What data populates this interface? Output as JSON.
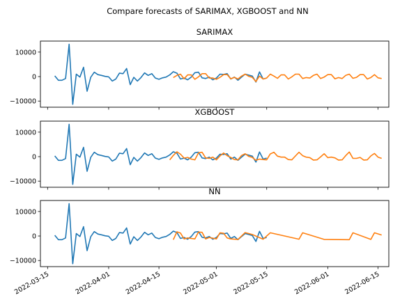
{
  "figure": {
    "title": "Compare forecasts of SARIMAX, XGBOOST and NN",
    "background": "#ffffff"
  },
  "colors": {
    "history": "#1f77b4",
    "forecast": "#ff7f0e",
    "axes": "#000000"
  },
  "chart_data": [
    {
      "type": "line",
      "title": "SARIMAX",
      "xlabel": "",
      "ylabel": "",
      "ylim": [
        -12500,
        14500
      ],
      "yticks": [
        -10000,
        0,
        10000
      ],
      "ytick_labels": [
        "−10000",
        "0",
        "10000"
      ],
      "xlim": [
        "2022-03-13",
        "2022-06-18"
      ],
      "series": [
        {
          "x": [
            "2022-03-17",
            "2022-03-18",
            "2022-03-19",
            "2022-03-20",
            "2022-03-21",
            "2022-03-22",
            "2022-03-23",
            "2022-03-24",
            "2022-03-25",
            "2022-03-26",
            "2022-03-27",
            "2022-03-28",
            "2022-03-29",
            "2022-03-30",
            "2022-03-31",
            "2022-04-01",
            "2022-04-02",
            "2022-04-03",
            "2022-04-04",
            "2022-04-05",
            "2022-04-06",
            "2022-04-07",
            "2022-04-08",
            "2022-04-09",
            "2022-04-10",
            "2022-04-11",
            "2022-04-12",
            "2022-04-13",
            "2022-04-14",
            "2022-04-15",
            "2022-04-16",
            "2022-04-17",
            "2022-04-18",
            "2022-04-19",
            "2022-04-20",
            "2022-04-21",
            "2022-04-22",
            "2022-04-23",
            "2022-04-24",
            "2022-04-25",
            "2022-04-26",
            "2022-04-27",
            "2022-04-28",
            "2022-04-29",
            "2022-04-30",
            "2022-05-01",
            "2022-05-02",
            "2022-05-03",
            "2022-05-04",
            "2022-05-05",
            "2022-05-06",
            "2022-05-07",
            "2022-05-08",
            "2022-05-09",
            "2022-05-10",
            "2022-05-11",
            "2022-05-12",
            "2022-05-13",
            "2022-05-14",
            "2022-05-15"
          ],
          "y": [
            300,
            -1500,
            -1500,
            -800,
            13200,
            -11300,
            1000,
            -200,
            3800,
            -6000,
            -300,
            1800,
            800,
            500,
            100,
            -100,
            -1800,
            -1000,
            1400,
            1200,
            3300,
            -3300,
            -300,
            -1800,
            -400,
            1500,
            500,
            1200,
            -600,
            -1100,
            -500,
            -200,
            700,
            2000,
            1400,
            -1000,
            -600,
            -1300,
            -200,
            1600,
            1800,
            -500,
            -800,
            -200,
            -1300,
            -600,
            1000,
            900,
            1200,
            -1000,
            -200,
            -1500,
            -200,
            1000,
            600,
            200,
            -2200,
            1900,
            -1000,
            -600
          ]
        },
        {
          "x": [
            "2022-04-19",
            "2022-04-20",
            "2022-04-21",
            "2022-04-22",
            "2022-04-23",
            "2022-04-24",
            "2022-04-25",
            "2022-04-26",
            "2022-04-27",
            "2022-04-28",
            "2022-04-29",
            "2022-04-30",
            "2022-05-01",
            "2022-05-02",
            "2022-05-03",
            "2022-05-04",
            "2022-05-05",
            "2022-05-06",
            "2022-05-07",
            "2022-05-08",
            "2022-05-09",
            "2022-05-10",
            "2022-05-11",
            "2022-05-12",
            "2022-05-13",
            "2022-05-14",
            "2022-05-15",
            "2022-05-16",
            "2022-05-17",
            "2022-05-18",
            "2022-05-19",
            "2022-05-20",
            "2022-05-21",
            "2022-05-22",
            "2022-05-23",
            "2022-05-24",
            "2022-05-25",
            "2022-05-26",
            "2022-05-27",
            "2022-05-28",
            "2022-05-29",
            "2022-05-30",
            "2022-05-31",
            "2022-06-01",
            "2022-06-02",
            "2022-06-03",
            "2022-06-04",
            "2022-06-05",
            "2022-06-06",
            "2022-06-07",
            "2022-06-08",
            "2022-06-09",
            "2022-06-10",
            "2022-06-11",
            "2022-06-12",
            "2022-06-13",
            "2022-06-14",
            "2022-06-15",
            "2022-06-16"
          ],
          "y": [
            -400,
            500,
            1000,
            -900,
            700,
            700,
            -1100,
            -100,
            1200,
            1200,
            -600,
            -600,
            -1100,
            -300,
            800,
            800,
            -900,
            -300,
            -1000,
            200,
            1000,
            100,
            -300,
            -2000,
            200,
            -1000,
            -600,
            1000,
            200,
            -700,
            700,
            700,
            -1000,
            -100,
            1000,
            1000,
            -800,
            -400,
            -600,
            500,
            1000,
            -800,
            -200,
            800,
            800,
            -900,
            -400,
            -800,
            500,
            1000,
            -700,
            -300,
            800,
            800,
            -1000,
            -400,
            800,
            -500,
            -800
          ]
        }
      ]
    },
    {
      "type": "line",
      "title": "XGBOOST",
      "xlabel": "",
      "ylabel": "",
      "ylim": [
        -12500,
        14500
      ],
      "yticks": [
        -10000,
        0,
        10000
      ],
      "ytick_labels": [
        "−10000",
        "0",
        "10000"
      ],
      "xlim": [
        "2022-03-13",
        "2022-06-18"
      ],
      "series": [
        {
          "x": [
            "2022-03-17",
            "2022-03-18",
            "2022-03-19",
            "2022-03-20",
            "2022-03-21",
            "2022-03-22",
            "2022-03-23",
            "2022-03-24",
            "2022-03-25",
            "2022-03-26",
            "2022-03-27",
            "2022-03-28",
            "2022-03-29",
            "2022-03-30",
            "2022-03-31",
            "2022-04-01",
            "2022-04-02",
            "2022-04-03",
            "2022-04-04",
            "2022-04-05",
            "2022-04-06",
            "2022-04-07",
            "2022-04-08",
            "2022-04-09",
            "2022-04-10",
            "2022-04-11",
            "2022-04-12",
            "2022-04-13",
            "2022-04-14",
            "2022-04-15",
            "2022-04-16",
            "2022-04-17",
            "2022-04-18",
            "2022-04-19",
            "2022-04-20",
            "2022-04-21",
            "2022-04-22",
            "2022-04-23",
            "2022-04-24",
            "2022-04-25",
            "2022-04-26",
            "2022-04-27",
            "2022-04-28",
            "2022-04-29",
            "2022-04-30",
            "2022-05-01",
            "2022-05-02",
            "2022-05-03",
            "2022-05-04",
            "2022-05-05",
            "2022-05-06",
            "2022-05-07",
            "2022-05-08",
            "2022-05-09",
            "2022-05-10",
            "2022-05-11",
            "2022-05-12",
            "2022-05-13",
            "2022-05-14",
            "2022-05-15"
          ],
          "y": [
            300,
            -1500,
            -1500,
            -800,
            13200,
            -11300,
            1000,
            -200,
            3800,
            -6000,
            -300,
            1800,
            800,
            500,
            100,
            -100,
            -1800,
            -1000,
            1400,
            1200,
            3300,
            -3300,
            -300,
            -1800,
            -400,
            1500,
            500,
            1200,
            -600,
            -1100,
            -500,
            -200,
            700,
            2000,
            1400,
            -1000,
            -600,
            -1300,
            -200,
            1600,
            1800,
            -500,
            -800,
            -200,
            -1300,
            -600,
            1000,
            900,
            1200,
            -1000,
            -200,
            -1500,
            -200,
            1000,
            600,
            200,
            -2200,
            1900,
            -1000,
            -600
          ]
        },
        {
          "x": [
            "2022-04-18",
            "2022-04-19",
            "2022-04-20",
            "2022-04-21",
            "2022-04-22",
            "2022-04-23",
            "2022-04-24",
            "2022-04-25",
            "2022-04-26",
            "2022-04-27",
            "2022-04-28",
            "2022-04-29",
            "2022-04-30",
            "2022-05-01",
            "2022-05-02",
            "2022-05-03",
            "2022-05-04",
            "2022-05-05",
            "2022-05-06",
            "2022-05-07",
            "2022-05-08",
            "2022-05-09",
            "2022-05-10",
            "2022-05-11",
            "2022-05-12",
            "2022-05-13",
            "2022-05-14",
            "2022-05-15",
            "2022-05-16",
            "2022-05-17",
            "2022-05-18",
            "2022-05-19",
            "2022-05-20",
            "2022-05-21",
            "2022-05-22",
            "2022-05-23",
            "2022-05-24",
            "2022-05-25",
            "2022-05-26",
            "2022-05-27",
            "2022-05-28",
            "2022-05-29",
            "2022-05-30",
            "2022-05-31",
            "2022-06-01",
            "2022-06-02",
            "2022-06-03",
            "2022-06-04",
            "2022-06-05",
            "2022-06-06",
            "2022-06-07",
            "2022-06-08",
            "2022-06-09",
            "2022-06-10",
            "2022-06-11",
            "2022-06-12",
            "2022-06-13",
            "2022-06-14",
            "2022-06-15",
            "2022-06-16"
          ],
          "y": [
            -1300,
            500,
            2000,
            1000,
            -600,
            -300,
            -1000,
            -1300,
            1500,
            1800,
            -500,
            -700,
            -200,
            -1300,
            300,
            1500,
            400,
            -300,
            -1200,
            -1300,
            500,
            1200,
            100,
            -300,
            -1500,
            -1000,
            -1200,
            -1300,
            1100,
            1800,
            200,
            -200,
            -200,
            -1200,
            -1300,
            300,
            1800,
            400,
            -200,
            -400,
            -1400,
            -1300,
            -100,
            1200,
            -400,
            -200,
            -500,
            -1400,
            -1300,
            400,
            1900,
            -700,
            -700,
            -300,
            -1400,
            -1300,
            300,
            1300,
            -200,
            -700
          ]
        }
      ]
    },
    {
      "type": "line",
      "title": "NN",
      "xlabel": "",
      "ylabel": "",
      "ylim": [
        -12500,
        14500
      ],
      "yticks": [
        -10000,
        0,
        10000
      ],
      "ytick_labels": [
        "−10000",
        "0",
        "10000"
      ],
      "xlim": [
        "2022-03-13",
        "2022-06-18"
      ],
      "xticks": [
        "2022-03-15",
        "2022-04-01",
        "2022-04-15",
        "2022-05-01",
        "2022-05-15",
        "2022-06-01",
        "2022-06-15"
      ],
      "xtick_labels": [
        "2022-03-15",
        "2022-04-01",
        "2022-04-15",
        "2022-05-01",
        "2022-05-15",
        "2022-06-01",
        "2022-06-15"
      ],
      "series": [
        {
          "x": [
            "2022-03-17",
            "2022-03-18",
            "2022-03-19",
            "2022-03-20",
            "2022-03-21",
            "2022-03-22",
            "2022-03-23",
            "2022-03-24",
            "2022-03-25",
            "2022-03-26",
            "2022-03-27",
            "2022-03-28",
            "2022-03-29",
            "2022-03-30",
            "2022-03-31",
            "2022-04-01",
            "2022-04-02",
            "2022-04-03",
            "2022-04-04",
            "2022-04-05",
            "2022-04-06",
            "2022-04-07",
            "2022-04-08",
            "2022-04-09",
            "2022-04-10",
            "2022-04-11",
            "2022-04-12",
            "2022-04-13",
            "2022-04-14",
            "2022-04-15",
            "2022-04-16",
            "2022-04-17",
            "2022-04-18",
            "2022-04-19",
            "2022-04-20",
            "2022-04-21",
            "2022-04-22",
            "2022-04-23",
            "2022-04-24",
            "2022-04-25",
            "2022-04-26",
            "2022-04-27",
            "2022-04-28",
            "2022-04-29",
            "2022-04-30",
            "2022-05-01",
            "2022-05-02",
            "2022-05-03",
            "2022-05-04",
            "2022-05-05",
            "2022-05-06",
            "2022-05-07",
            "2022-05-08",
            "2022-05-09",
            "2022-05-10",
            "2022-05-11",
            "2022-05-12",
            "2022-05-13",
            "2022-05-14",
            "2022-05-15"
          ],
          "y": [
            300,
            -1500,
            -1500,
            -800,
            13200,
            -11300,
            1000,
            -200,
            3800,
            -6000,
            -300,
            1800,
            800,
            500,
            100,
            -100,
            -1800,
            -1000,
            1400,
            1200,
            3300,
            -3300,
            -300,
            -1800,
            -400,
            1500,
            500,
            1200,
            -600,
            -1100,
            -500,
            -200,
            700,
            2000,
            1400,
            -1000,
            -600,
            -1300,
            -200,
            1600,
            1800,
            -500,
            -800,
            -200,
            -1300,
            -600,
            1000,
            900,
            1200,
            -1000,
            -200,
            -1500,
            -200,
            1000,
            600,
            200,
            -2200,
            1900,
            -1000,
            -600
          ]
        },
        {
          "x": [
            "2022-04-19",
            "2022-04-20",
            "2022-04-21",
            "2022-04-22",
            "2022-04-23",
            "2022-04-25",
            "2022-04-26",
            "2022-04-27",
            "2022-04-28",
            "2022-04-29",
            "2022-05-01",
            "2022-05-02",
            "2022-05-03",
            "2022-05-04",
            "2022-05-05",
            "2022-05-07",
            "2022-05-09",
            "2022-05-10",
            "2022-05-11",
            "2022-05-14",
            "2022-05-16",
            "2022-05-24",
            "2022-05-25",
            "2022-05-31",
            "2022-06-07",
            "2022-06-08",
            "2022-06-13",
            "2022-06-14",
            "2022-06-16"
          ],
          "y": [
            -1500,
            1700,
            1200,
            -1200,
            -800,
            -1200,
            1600,
            1500,
            -1200,
            -600,
            -1200,
            1300,
            1100,
            -800,
            -1200,
            -1400,
            1400,
            1000,
            600,
            -1300,
            1300,
            -1300,
            1300,
            -1400,
            -1500,
            1300,
            -1400,
            1300,
            400
          ]
        }
      ]
    }
  ]
}
